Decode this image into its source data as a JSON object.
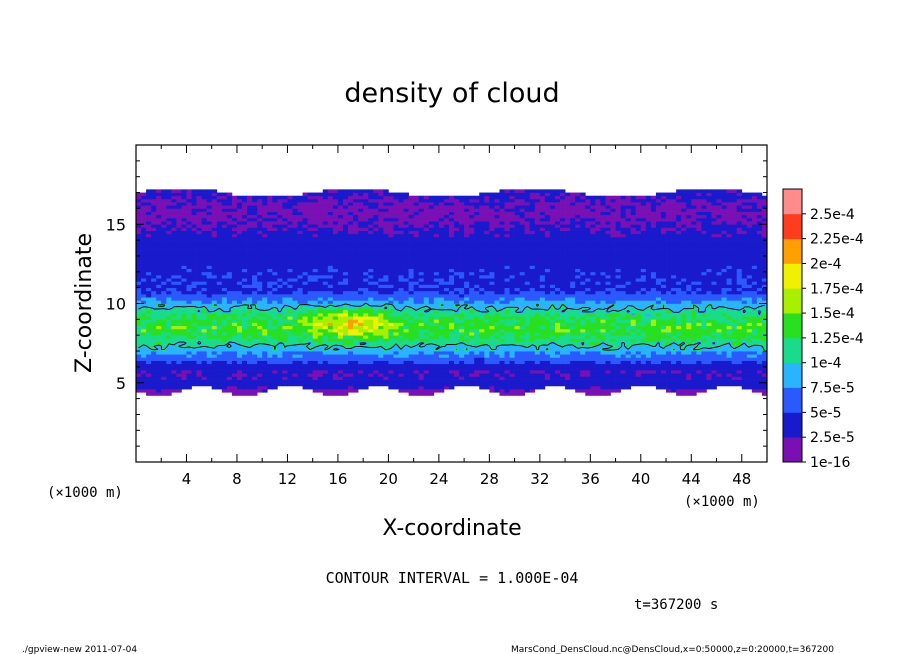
{
  "chart_data": {
    "type": "heatmap",
    "title": "density of cloud",
    "xlabel": "X-coordinate",
    "ylabel": "Z-coordinate",
    "x_unit": "(×1000 m)",
    "y_unit": "(×1000 m)",
    "xlim": [
      0,
      50
    ],
    "ylim": [
      0,
      20
    ],
    "x_ticks": [
      4,
      8,
      12,
      16,
      20,
      24,
      28,
      32,
      36,
      40,
      44,
      48
    ],
    "y_ticks": [
      5,
      10,
      15
    ],
    "colorbar": {
      "levels": [
        "1e-16",
        "2.5e-5",
        "5e-5",
        "7.5e-5",
        "1e-4",
        "1.25e-4",
        "1.5e-4",
        "1.75e-4",
        "2e-4",
        "2.25e-4",
        "2.5e-4"
      ],
      "colors": [
        "#7a10b4",
        "#1a1acd",
        "#2a5aff",
        "#28b4ff",
        "#18dc8c",
        "#28e020",
        "#a8f000",
        "#f0f000",
        "#ffa000",
        "#ff3c1e",
        "#ff8c8c"
      ]
    },
    "contour_interval": "CONTOUR INTERVAL = 1.000E-04",
    "profile": {
      "z_bottom": 4.5,
      "z_top": 17.0,
      "z_peak": 8.5,
      "peak_value": 0.000135,
      "hotspot": {
        "x": 17,
        "z": 8.8,
        "value": 0.00019
      }
    }
  },
  "time_label": "t=367200 s",
  "footer": {
    "left": "./gpview-new  2011-07-04",
    "right": "MarsCond_DensCloud.nc@DensCloud,x=0:50000,z=0:20000,t=367200"
  }
}
